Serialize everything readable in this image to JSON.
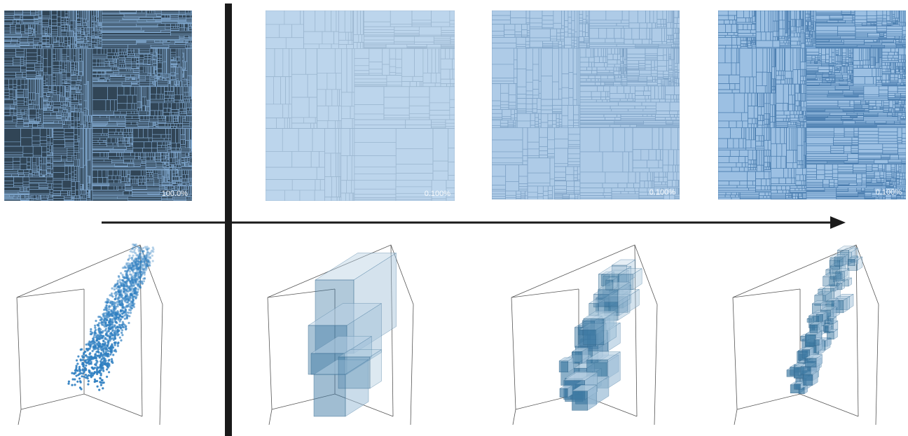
{
  "treemaps": [
    {
      "label": "100.0%",
      "theme": "dark",
      "depth": 6
    },
    {
      "label": "0.100%",
      "theme": "light",
      "depth": 3
    },
    {
      "label": "0.100%",
      "theme": "mid",
      "depth": 4
    },
    {
      "label": "0.100%",
      "theme": "deep",
      "depth": 5
    }
  ],
  "boxplots": [
    {
      "kind": "points"
    },
    {
      "kind": "coarse"
    },
    {
      "kind": "medium"
    },
    {
      "kind": "fine"
    }
  ],
  "colors": {
    "dark_bg": "#1c2a36",
    "line": "#8fb3d6",
    "light": "#a8c6e3",
    "mid": "#8fb6dd",
    "deep": "#6b9fd4",
    "point": "#2f7fc1",
    "cube": "#3e7aa3",
    "divider": "#1a1a1a"
  }
}
